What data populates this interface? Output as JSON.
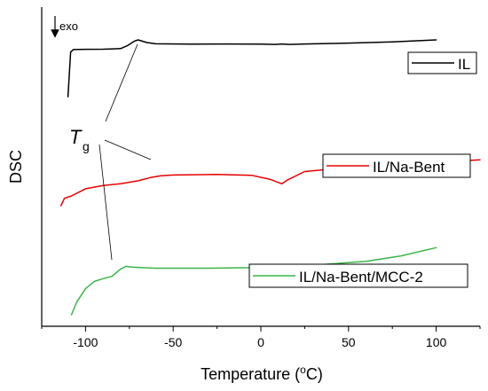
{
  "chart_data": {
    "type": "line",
    "title": "",
    "xlabel": "Temperature (",
    "xlabel_sup": "o",
    "xlabel_tail": "C)",
    "ylabel": "DSC",
    "xlim": [
      -125,
      125
    ],
    "xticks": [
      -100,
      -50,
      0,
      50,
      100
    ],
    "y_ticks_labeled": false,
    "grid": false,
    "legend_placement": "inline beside each curve",
    "exo_label": "exo",
    "annotation": {
      "main": "T",
      "sub": "g"
    },
    "series": [
      {
        "name": "IL",
        "color": "#000000",
        "x": [
          -110.0,
          -108.5,
          -107.0,
          -100.0,
          -90.0,
          -80.0,
          -76.0,
          -72.0,
          -70.0,
          -65.0,
          -60.0,
          -40.0,
          -20.0,
          0.0,
          8.0,
          12.0,
          16.0,
          25.0,
          50.0,
          75.0,
          100.0
        ],
        "y": [
          0.245,
          0.838,
          0.872,
          0.875,
          0.877,
          0.885,
          0.925,
          0.985,
          1.0,
          0.965,
          0.948,
          0.945,
          0.946,
          0.944,
          0.94,
          0.946,
          0.94,
          0.946,
          0.958,
          0.974,
          1.0
        ]
      },
      {
        "name": "IL/Na-Bent",
        "color": "#e60000",
        "x": [
          -114.0,
          -112.0,
          -108.0,
          -100.0,
          -90.0,
          -80.0,
          -70.0,
          -63.0,
          -57.0,
          -50.0,
          -25.0,
          -5.0,
          5.0,
          12.0,
          15.0,
          25.0,
          50.0,
          75.0,
          100.0,
          125.0
        ],
        "y": [
          0.0,
          0.117,
          0.153,
          0.265,
          0.315,
          0.345,
          0.39,
          0.44,
          0.47,
          0.48,
          0.49,
          0.475,
          0.415,
          0.343,
          0.4,
          0.535,
          0.6,
          0.64,
          0.68,
          0.72
        ]
      },
      {
        "name": "IL/Na-Bent/MCC-2",
        "color": "#3cb44b",
        "x": [
          -108.0,
          -105.0,
          -100.0,
          -95.0,
          -90.0,
          -85.0,
          -80.0,
          -77.0,
          -73.0,
          -60.0,
          -30.0,
          0.0,
          30.0,
          60.0,
          80.0,
          100.0
        ],
        "y": [
          0.0,
          0.14,
          0.2855,
          0.365,
          0.395,
          0.42,
          0.5,
          0.53,
          0.52,
          0.51,
          0.51,
          0.517,
          0.543,
          0.585,
          0.645,
          0.735
        ]
      }
    ]
  }
}
